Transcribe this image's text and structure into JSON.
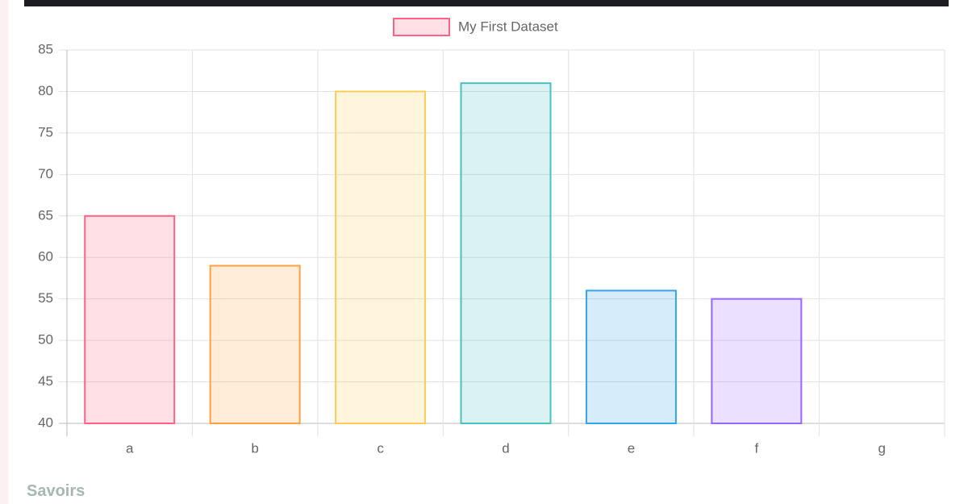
{
  "chart_data": {
    "type": "bar",
    "categories": [
      "a",
      "b",
      "c",
      "d",
      "e",
      "f",
      "g"
    ],
    "series": [
      {
        "name": "My First Dataset",
        "values": [
          65,
          59,
          80,
          81,
          56,
          55,
          40
        ],
        "colors": [
          "rgba(255,99,132,0.2)",
          "rgba(255,159,64,0.2)",
          "rgba(255,205,86,0.2)",
          "rgba(75,192,192,0.2)",
          "rgba(54,162,235,0.2)",
          "rgba(153,102,255,0.2)",
          "rgba(201,203,207,0.2)"
        ],
        "border_colors": [
          "#ff6384",
          "#ff9f40",
          "#ffcd56",
          "#4bc0c0",
          "#36a2eb",
          "#9966ff",
          "#c9cbcf"
        ]
      }
    ],
    "ylim": [
      40,
      85
    ],
    "yticks": [
      40,
      45,
      50,
      55,
      60,
      65,
      70,
      75,
      80,
      85
    ],
    "grid": true,
    "legend": "top"
  },
  "section_heading": "Savoirs"
}
